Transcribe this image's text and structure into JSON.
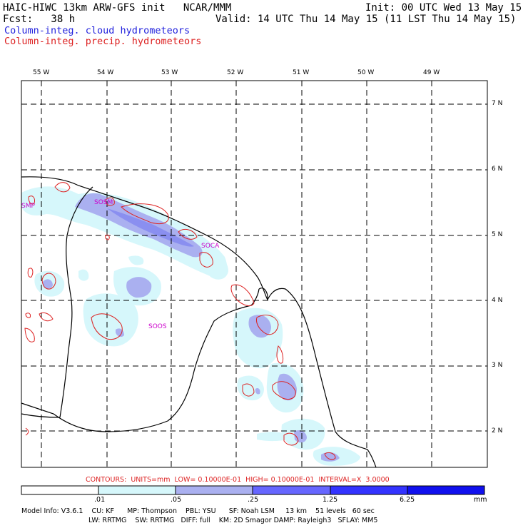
{
  "header": {
    "model_line": "HAIC-HIWC 13km ARW-GFS init   NCAR/MMM",
    "fcst_line": "Fcst:   38 h",
    "init_line": "Init: 00 UTC Wed 13 May 15",
    "valid_line": "Valid: 14 UTC Thu 14 May 15 (11 LST Thu 14 May 15)",
    "legend_cloud": "Column-integ. cloud hydrometeors",
    "legend_precip": "Column-integ. precip. hydrometeors"
  },
  "map": {
    "lon_labels": [
      "55 W",
      "54 W",
      "53 W",
      "52 W",
      "51 W",
      "50 W",
      "49 W"
    ],
    "lat_labels": [
      "7 N",
      "6 N",
      "5 N",
      "4 N",
      "3 N",
      "2 N"
    ],
    "stations": [
      "SMP",
      "SOSM",
      "SOCA",
      "SOOS"
    ],
    "colors": {
      "cloud_light": "#d6f7fb",
      "cloud_mid": "#aab0f0",
      "cloud_dark": "#6666ff",
      "cloud_max": "#1010ee",
      "precip_contour": "#dd2222",
      "coast": "#000000"
    }
  },
  "contour_info": "CONTOURS:  UNITS=mm  LOW= 0.10000E-01  HIGH= 0.10000E-01  INTERVAL=X  3.0000",
  "colorbar": {
    "ticks": [
      ".01",
      ".05",
      ".25",
      "1.25",
      "6.25"
    ],
    "units": "mm",
    "colors": [
      "#ffffff",
      "#d6f7fb",
      "#aab0f0",
      "#6666ff",
      "#3333ff",
      "#1010ee"
    ]
  },
  "footer": {
    "line1": "Model Info: V3.6.1    CU: KF      MP: Thompson    PBL: YSU      SF: Noah LSM     13 km    51 levels   60 sec",
    "line2": "LW: RRTMG    SW: RRTMG   DIFF: full    KM: 2D Smagor DAMP: Rayleigh3   SFLAY: MM5"
  }
}
